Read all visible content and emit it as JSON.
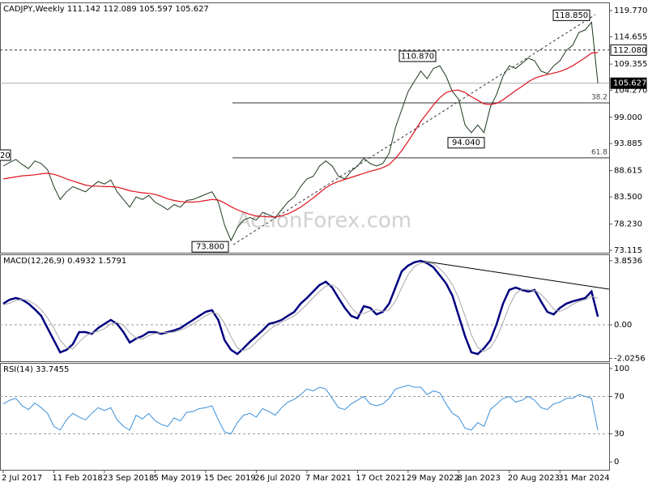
{
  "chart_data": [
    {
      "type": "line",
      "title": "CADJPY,Weekly  111.142 112.089 105.597 105.627",
      "watermark": "ActionForex.com",
      "edge_label": "20",
      "categories": [
        "2 Jul 2017",
        null,
        null,
        null,
        null,
        null,
        null,
        null,
        "11 Feb 2018",
        null,
        null,
        null,
        null,
        null,
        null,
        null,
        "23 Sep 2018",
        null,
        null,
        null,
        null,
        null,
        null,
        null,
        "5 May 2019",
        null,
        null,
        null,
        null,
        null,
        null,
        null,
        "15 Dec 2019",
        null,
        null,
        null,
        null,
        null,
        null,
        null,
        "26 Jul 2020",
        null,
        null,
        null,
        null,
        null,
        null,
        null,
        "7 Mar 2021",
        null,
        null,
        null,
        null,
        null,
        null,
        null,
        "17 Oct 2021",
        null,
        null,
        null,
        null,
        null,
        null,
        null,
        "29 May 2022",
        null,
        null,
        null,
        null,
        null,
        null,
        null,
        "8 Jan 2023",
        null,
        null,
        null,
        null,
        null,
        null,
        null,
        "20 Aug 2023",
        null,
        null,
        null,
        null,
        null,
        null,
        null,
        "31 Mar 2024",
        null,
        null,
        null,
        null,
        null,
        null
      ],
      "series": [
        {
          "color": "#1e3a1e",
          "values": [
            89.5,
            90.2,
            90.8,
            89.8,
            89.0,
            90.5,
            90.0,
            88.8,
            85.5,
            83.0,
            84.5,
            85.5,
            85.0,
            84.5,
            85.5,
            86.5,
            86.0,
            86.8,
            84.5,
            83.0,
            81.5,
            83.5,
            83.0,
            83.8,
            82.5,
            81.8,
            81.0,
            82.0,
            81.5,
            82.8,
            83.0,
            83.5,
            84.0,
            84.5,
            82.5,
            78.0,
            75.0,
            77.5,
            79.0,
            79.5,
            79.0,
            80.5,
            80.0,
            79.5,
            81.0,
            82.5,
            83.5,
            85.5,
            87.0,
            87.5,
            89.5,
            90.5,
            89.5,
            87.5,
            87.0,
            88.5,
            89.5,
            91.0,
            90.0,
            89.5,
            90.0,
            92.0,
            97.0,
            100.5,
            104.0,
            106.0,
            108.0,
            106.5,
            108.5,
            109.0,
            107.0,
            104.0,
            102.5,
            97.5,
            96.0,
            97.5,
            96.0,
            101.0,
            103.5,
            107.0,
            109.0,
            108.5,
            109.5,
            110.5,
            110.0,
            108.0,
            107.5,
            109.0,
            110.0,
            112.0,
            113.0,
            115.5,
            116.0,
            117.5,
            105.627
          ]
        },
        {
          "color": "#e0141e",
          "values": [
            87.0,
            87.2,
            87.4,
            87.6,
            87.7,
            87.8,
            88.0,
            88.1,
            87.9,
            87.5,
            87.0,
            86.6,
            86.2,
            85.8,
            85.6,
            85.6,
            85.5,
            85.5,
            85.4,
            85.1,
            84.7,
            84.5,
            84.3,
            84.2,
            84.0,
            83.6,
            83.1,
            82.8,
            82.6,
            82.5,
            82.5,
            82.6,
            82.8,
            83.0,
            82.9,
            82.3,
            81.6,
            81.0,
            80.5,
            80.1,
            79.8,
            79.7,
            79.6,
            79.6,
            79.8,
            80.2,
            80.8,
            81.5,
            82.4,
            83.3,
            84.3,
            85.3,
            86.0,
            86.5,
            86.9,
            87.3,
            87.7,
            88.1,
            88.5,
            88.8,
            89.2,
            89.8,
            91.0,
            92.5,
            94.3,
            96.2,
            98.2,
            99.8,
            101.4,
            102.8,
            103.8,
            104.2,
            104.3,
            103.8,
            103.0,
            102.3,
            101.6,
            101.5,
            101.7,
            102.4,
            103.3,
            104.2,
            105.0,
            105.9,
            106.6,
            107.0,
            107.3,
            107.6,
            107.9,
            108.4,
            109.0,
            109.8,
            110.6,
            111.5,
            111.6
          ]
        }
      ],
      "ylim": [
        72.64,
        121.35
      ],
      "yticks": [
        {
          "value": 119.77,
          "label": "119.770"
        },
        114.655,
        109.355,
        {
          "value": 104.27,
          "label": "104.270"
        },
        {
          "value": 99,
          "label": "99.000"
        },
        93.885,
        88.615,
        {
          "value": 83.5,
          "label": "83.500"
        },
        {
          "value": 78.23,
          "label": "78.230"
        },
        73.115
      ],
      "levels": [
        {
          "value": 112.08,
          "label": "112.080"
        },
        {
          "value": 105.627,
          "label": "105.627"
        }
      ],
      "fib_levels": [
        {
          "value": 101.8,
          "label": "38.2"
        },
        {
          "value": 91.1,
          "label": "61.8"
        }
      ],
      "annotations": [
        {
          "value": 118.85,
          "label": "118.850"
        },
        {
          "value": 110.87,
          "label": "110.870"
        },
        {
          "value": 94.04,
          "label": "94.040"
        },
        {
          "value": 73.8,
          "label": "73.800"
        }
      ]
    },
    {
      "type": "line",
      "title": "MACD(12,26,9) 0.4932 1.5791",
      "series": [
        {
          "color": "#000080",
          "values": [
            1.27,
            1.51,
            1.61,
            1.51,
            1.27,
            0.93,
            0.54,
            -0.2,
            -0.93,
            -1.66,
            -1.51,
            -1.17,
            -0.44,
            -0.44,
            -0.54,
            -0.2,
            0.05,
            0.29,
            0.05,
            -0.44,
            -1.07,
            -0.83,
            -0.68,
            -0.44,
            -0.44,
            -0.54,
            -0.44,
            -0.34,
            -0.2,
            0.05,
            0.29,
            0.54,
            0.78,
            0.88,
            0.29,
            -0.93,
            -1.51,
            -1.76,
            -1.41,
            -1.02,
            -0.68,
            -0.34,
            0.05,
            0.15,
            0.29,
            0.54,
            0.78,
            1.27,
            1.61,
            2.0,
            2.39,
            2.59,
            2.24,
            1.61,
            1.02,
            0.54,
            0.39,
            1.12,
            1.02,
            0.63,
            0.78,
            1.27,
            2.24,
            3.22,
            3.56,
            3.76,
            3.85,
            3.71,
            3.46,
            2.98,
            2.49,
            1.76,
            0.54,
            -0.68,
            -1.66,
            -1.76,
            -1.41,
            -0.93,
            0.05,
            1.27,
            2.1,
            2.24,
            2.1,
            2.0,
            2.1,
            1.41,
            0.78,
            0.63,
            1.02,
            1.27,
            1.41,
            1.51,
            1.61,
            2.0,
            0.4932
          ]
        },
        {
          "color": "#a8a8a8",
          "values": [
            1.2,
            1.3,
            1.46,
            1.54,
            1.46,
            1.24,
            0.91,
            0.42,
            -0.2,
            -0.93,
            -1.37,
            -1.45,
            -1.04,
            -0.68,
            -0.47,
            -0.39,
            -0.23,
            0.05,
            0.13,
            -0.03,
            -0.49,
            -0.78,
            -0.86,
            -0.65,
            -0.52,
            -0.47,
            -0.47,
            -0.44,
            -0.33,
            -0.16,
            0.05,
            0.29,
            0.54,
            0.73,
            0.65,
            0.08,
            -0.72,
            -1.4,
            -1.56,
            -1.4,
            -1.04,
            -0.68,
            -0.32,
            -0.05,
            0.16,
            0.33,
            0.54,
            0.86,
            1.22,
            1.63,
            2.0,
            2.33,
            2.41,
            2.15,
            1.62,
            1.06,
            0.65,
            0.68,
            0.84,
            0.92,
            0.81,
            0.89,
            1.43,
            2.24,
            3.01,
            3.51,
            3.72,
            3.77,
            3.67,
            3.38,
            2.98,
            2.41,
            1.6,
            0.54,
            -0.6,
            -1.37,
            -1.61,
            -1.37,
            -0.76,
            0.13,
            1.14,
            1.87,
            2.15,
            2.11,
            2.07,
            1.84,
            1.43,
            0.94,
            0.81,
            0.97,
            1.23,
            1.4,
            1.51,
            1.71,
            1.5791
          ]
        }
      ],
      "ylim": [
        -2.195,
        4.24
      ],
      "yticks": [
        3.8536,
        {
          "value": 0,
          "label": "0.00"
        },
        -2.0256
      ]
    },
    {
      "type": "line",
      "title": "RSI(14) 33.7455",
      "series": [
        {
          "color": "#3a8fd8",
          "values": [
            62,
            66,
            68,
            60,
            56,
            63,
            58,
            52,
            38,
            34,
            45,
            52,
            48,
            45,
            52,
            58,
            55,
            58,
            45,
            38,
            34,
            50,
            46,
            52,
            44,
            40,
            38,
            47,
            44,
            53,
            54,
            57,
            58,
            60,
            45,
            32,
            30,
            42,
            50,
            52,
            48,
            57,
            54,
            50,
            58,
            64,
            67,
            72,
            78,
            76,
            80,
            78,
            68,
            58,
            56,
            62,
            66,
            70,
            62,
            60,
            62,
            68,
            78,
            80,
            82,
            80,
            80,
            72,
            76,
            74,
            62,
            52,
            48,
            36,
            34,
            42,
            38,
            56,
            62,
            68,
            70,
            64,
            66,
            70,
            66,
            58,
            56,
            62,
            64,
            68,
            68,
            72,
            70,
            68,
            33.7455
          ]
        }
      ],
      "ylim": [
        -8.5,
        106
      ],
      "yticks": [
        100,
        70,
        30,
        0
      ]
    }
  ]
}
